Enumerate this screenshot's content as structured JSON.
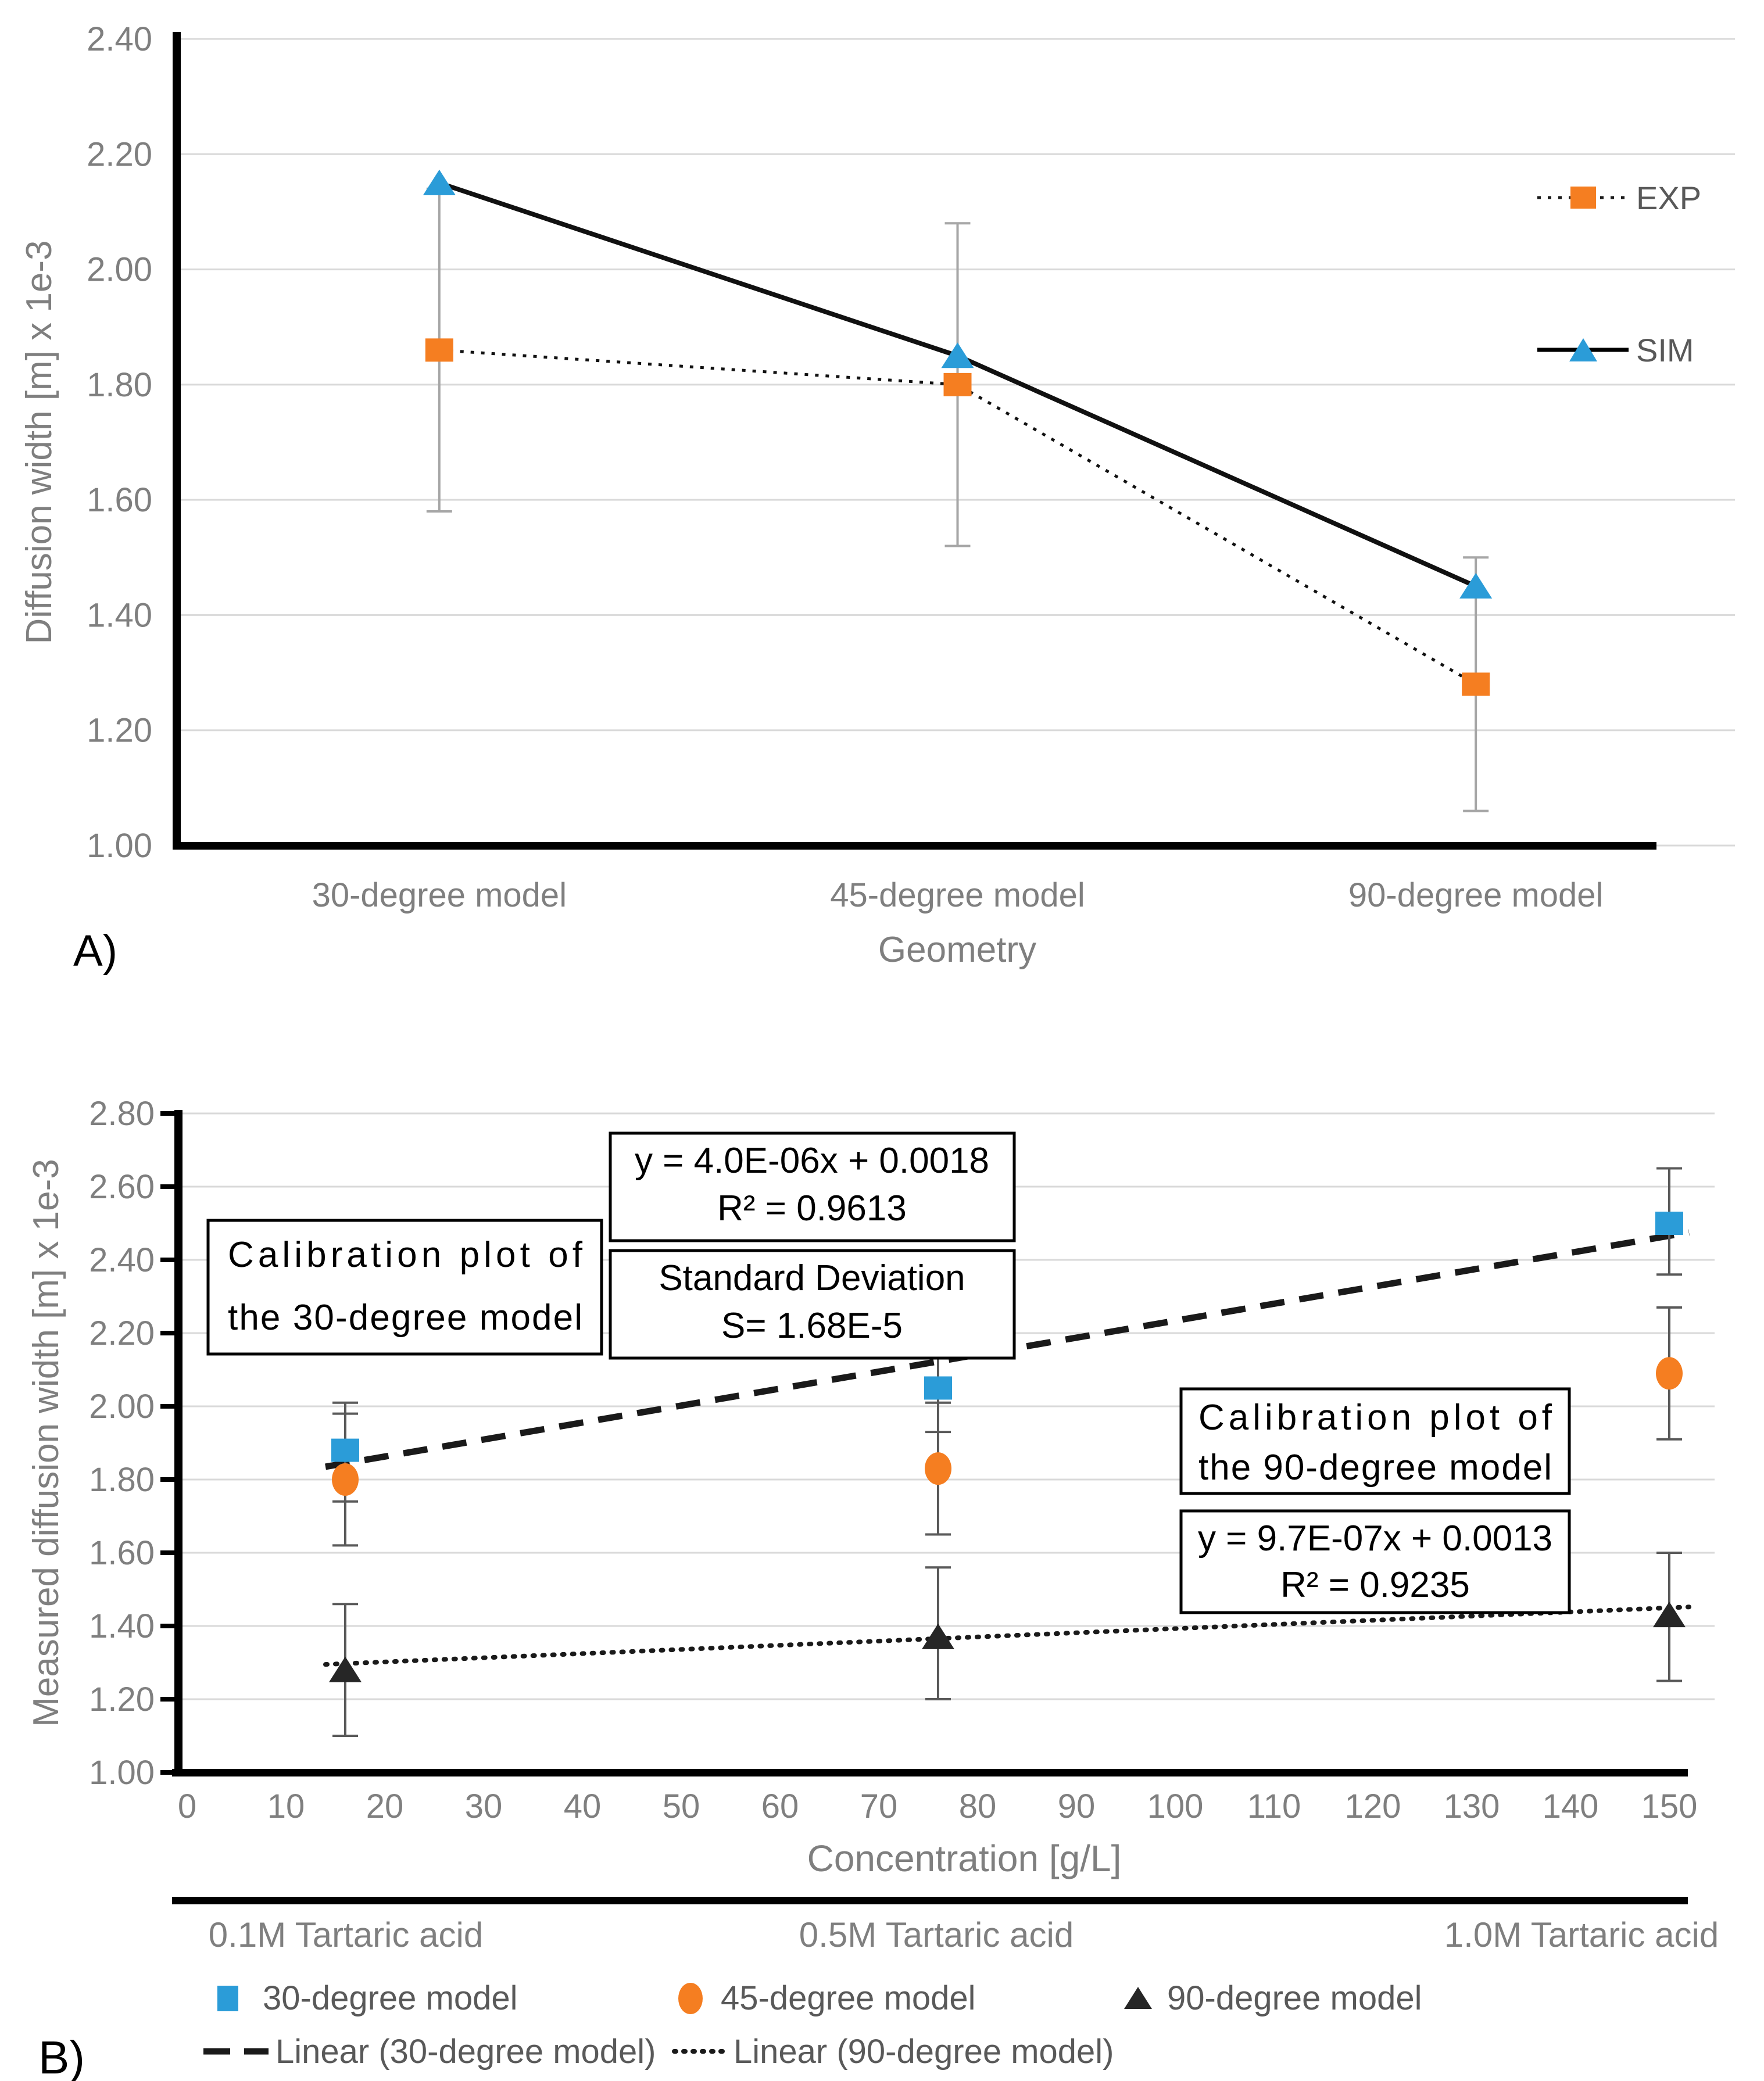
{
  "labels": {
    "panel_a": "A)",
    "panel_b": "B)"
  },
  "chart_data": [
    {
      "id": "panel_a",
      "type": "line",
      "title": "",
      "xlabel": "Geometry",
      "ylabel": "Diffusion width [m] x 1e-3",
      "ylim": [
        1.0,
        2.4
      ],
      "ytick_step": 0.2,
      "ytick_labels": [
        "1.00",
        "1.20",
        "1.40",
        "1.60",
        "1.80",
        "2.00",
        "2.20",
        "2.40"
      ],
      "grid": true,
      "legend_position": "right-inside",
      "categories": [
        "30-degree model",
        "45-degree model",
        "90-degree model"
      ],
      "series": [
        {
          "name": "EXP",
          "marker": "square",
          "color": "#F57E21",
          "line": "dotted",
          "values": [
            1.86,
            1.8,
            1.28
          ],
          "error_low": [
            1.58,
            1.52,
            1.06
          ],
          "error_high": [
            2.14,
            2.08,
            1.5
          ]
        },
        {
          "name": "SIM",
          "marker": "triangle",
          "color": "#2B9CD8",
          "line": "solid",
          "values": [
            2.15,
            1.85,
            1.45
          ]
        }
      ]
    },
    {
      "id": "panel_b",
      "type": "scatter",
      "title": "",
      "xlabel": "Concentration [g/L]",
      "ylabel": "Measured diffusion width [m] x 1e-3",
      "xlim": [
        0,
        150
      ],
      "xtick_step": 10,
      "xtick_labels": [
        "0",
        "10",
        "20",
        "30",
        "40",
        "50",
        "60",
        "70",
        "80",
        "90",
        "100",
        "110",
        "120",
        "130",
        "140",
        "150"
      ],
      "ylim": [
        1.0,
        2.8
      ],
      "ytick_step": 0.2,
      "ytick_labels": [
        "1.00",
        "1.20",
        "1.40",
        "1.60",
        "1.80",
        "2.00",
        "2.20",
        "2.40",
        "2.60",
        "2.80"
      ],
      "grid": true,
      "x": [
        16,
        76,
        150
      ],
      "series": [
        {
          "name": "30-degree model",
          "marker": "square",
          "color": "#2B9CD8",
          "values": [
            1.88,
            2.05,
            2.5
          ],
          "error_low": [
            1.74,
            1.93,
            2.36
          ],
          "error_high": [
            2.01,
            2.17,
            2.65
          ]
        },
        {
          "name": "45-degree model",
          "marker": "circle",
          "color": "#F57E21",
          "values": [
            1.8,
            1.83,
            2.09
          ],
          "error_low": [
            1.62,
            1.65,
            1.91
          ],
          "error_high": [
            1.98,
            2.01,
            2.27
          ]
        },
        {
          "name": "90-degree model",
          "marker": "triangle",
          "color": "#262626",
          "values": [
            1.28,
            1.37,
            1.43
          ],
          "error_low": [
            1.1,
            1.2,
            1.25
          ],
          "error_high": [
            1.46,
            1.56,
            1.6
          ]
        }
      ],
      "trendlines": [
        {
          "name": "Linear (30-degree model)",
          "style": "dashed",
          "x": [
            14,
            152
          ],
          "y": [
            1.835,
            2.475
          ]
        },
        {
          "name": "Linear (90-degree model)",
          "style": "dotted",
          "x": [
            14,
            152
          ],
          "y": [
            1.295,
            1.452
          ]
        }
      ],
      "text_boxes": [
        {
          "lines": [
            "y = 4.0E-06x + 0.0018",
            "R² = 0.9613"
          ]
        },
        {
          "lines": [
            "Standard Deviation",
            "S= 1.68E-5"
          ]
        },
        {
          "lines": [
            "Calibration plot of",
            "the 30-degree model"
          ]
        },
        {
          "lines": [
            "Calibration plot of",
            "the 90-degree model"
          ]
        },
        {
          "lines": [
            "y = 9.7E-07x + 0.0013",
            "R² = 0.9235"
          ]
        }
      ],
      "sub_axis_labels": [
        "0.1M Tartaric acid",
        "0.5M Tartaric acid",
        "1.0M Tartaric acid"
      ]
    }
  ]
}
